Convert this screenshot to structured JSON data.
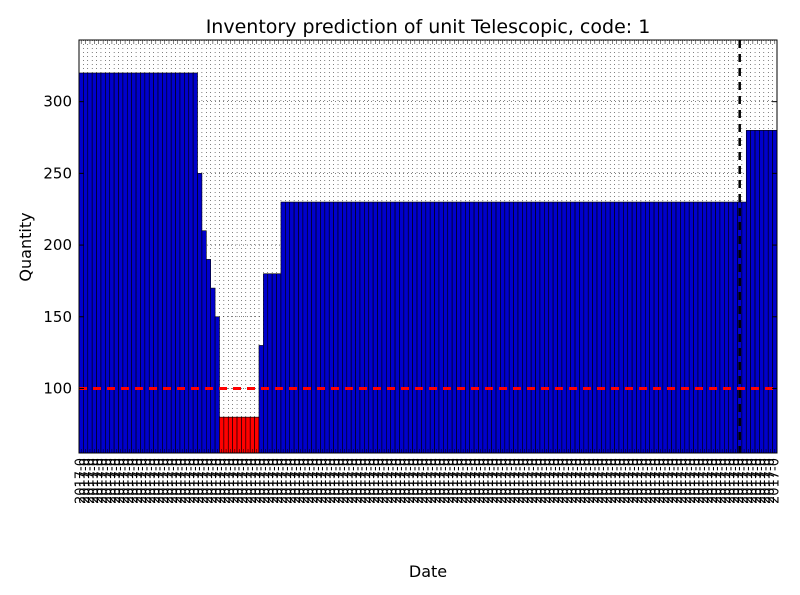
{
  "chart_data": {
    "type": "bar",
    "title": "Inventory prediction of unit Telescopic, code: 1",
    "xlabel": "Date",
    "ylabel": "Quantity",
    "ylim": [
      55,
      343
    ],
    "yticks": [
      100,
      150,
      200,
      250,
      300
    ],
    "grid": true,
    "xtick_label_prefix": "2017-0",
    "segments": [
      {
        "count": 27,
        "value": 320,
        "color": "#0000cc"
      },
      {
        "count": 1,
        "value": 250,
        "color": "#0000cc"
      },
      {
        "count": 1,
        "value": 210,
        "color": "#0000cc"
      },
      {
        "count": 1,
        "value": 190,
        "color": "#0000cc"
      },
      {
        "count": 1,
        "value": 170,
        "color": "#0000cc"
      },
      {
        "count": 1,
        "value": 150,
        "color": "#0000cc"
      },
      {
        "count": 9,
        "value": 80,
        "color": "#ff0000"
      },
      {
        "count": 1,
        "value": 130,
        "color": "#0000cc"
      },
      {
        "count": 4,
        "value": 180,
        "color": "#0000cc"
      },
      {
        "count": 106,
        "value": 230,
        "color": "#0000cc"
      },
      {
        "count": 7,
        "value": 280,
        "color": "#0000cc"
      }
    ],
    "reference_lines": [
      {
        "axis": "y",
        "value": 100,
        "style": "dashed",
        "color": "#ff0000"
      },
      {
        "axis": "x",
        "bar_index": 150,
        "style": "dashed",
        "color": "#000000"
      }
    ]
  }
}
